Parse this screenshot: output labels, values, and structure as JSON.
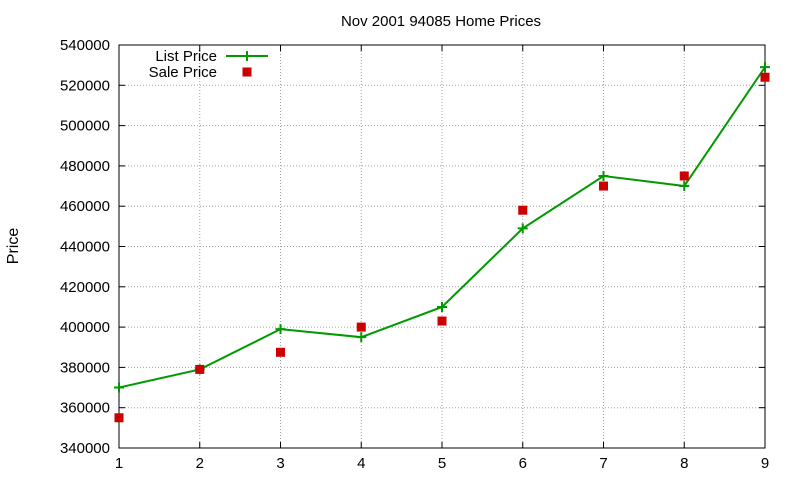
{
  "chart_data": {
    "type": "line",
    "title": "Nov 2001 94085 Home Prices",
    "xlabel": "",
    "ylabel": "Price",
    "xlim": [
      1,
      9
    ],
    "ylim": [
      340000,
      540000
    ],
    "xticks": [
      1,
      2,
      3,
      4,
      5,
      6,
      7,
      8,
      9
    ],
    "yticks": [
      340000,
      360000,
      380000,
      400000,
      420000,
      440000,
      460000,
      480000,
      500000,
      520000,
      540000
    ],
    "grid": true,
    "legend_position": "top-left",
    "series": [
      {
        "name": "List Price",
        "style": "line-with-plus-markers",
        "color": "#009900",
        "x": [
          1,
          2,
          3,
          4,
          5,
          6,
          7,
          8,
          9
        ],
        "y": [
          370000,
          379000,
          399000,
          395000,
          410000,
          449000,
          475000,
          470000,
          529000
        ]
      },
      {
        "name": "Sale Price",
        "style": "square-markers",
        "color": "#cc0000",
        "x": [
          1,
          2,
          3,
          4,
          5,
          6,
          7,
          8,
          9
        ],
        "y": [
          355000,
          379000,
          387500,
          400000,
          403000,
          458000,
          470000,
          475000,
          524000
        ]
      }
    ]
  }
}
